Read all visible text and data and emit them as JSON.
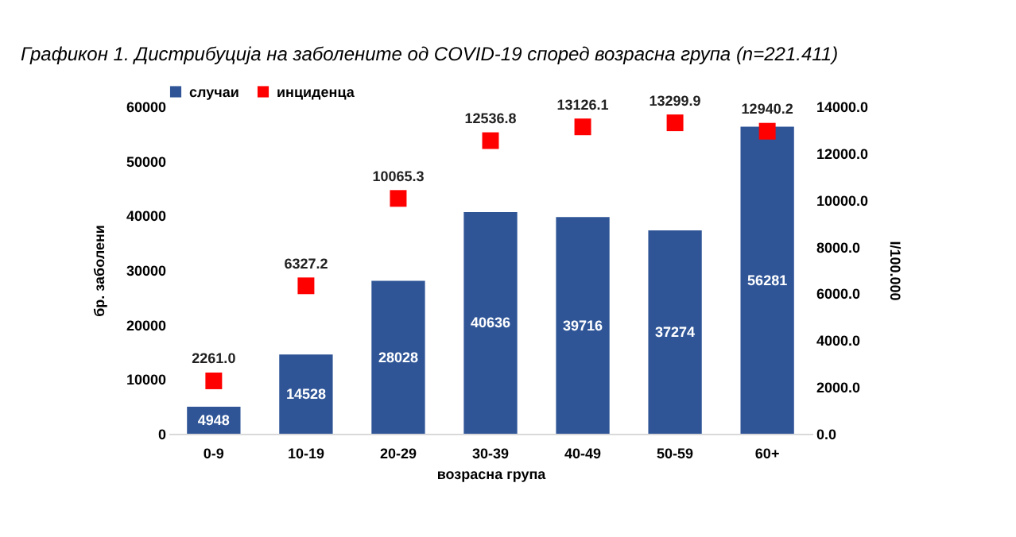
{
  "chart_data": {
    "type": "bar",
    "title": "Графикон 1. Дистрибуција на заболените од COVID-19 според возрасна група (n=221.411)",
    "xlabel": "возрасна група",
    "ylabel": "бр. заболени",
    "y2label": "I/100.000",
    "categories": [
      "0-9",
      "10-19",
      "20-29",
      "30-39",
      "40-49",
      "50-59",
      "60+"
    ],
    "series": [
      {
        "name": "случаи",
        "color": "#2f5597",
        "values": [
          4948,
          14528,
          28028,
          40636,
          39716,
          37274,
          56281
        ]
      },
      {
        "name": "инциденца",
        "type": "scatter",
        "axis": "y2",
        "color": "#ff0000",
        "values": [
          2261.0,
          6327.2,
          10065.3,
          12536.8,
          13126.1,
          13299.9,
          12940.2
        ],
        "value_labels": [
          "2261.0",
          "6327.2",
          "10065.3",
          "12536.8",
          "13126.1",
          "13299.9",
          "12940.2"
        ]
      }
    ],
    "ylim": [
      0,
      60000
    ],
    "yticks": [
      0,
      10000,
      20000,
      30000,
      40000,
      50000,
      60000
    ],
    "y2lim": [
      0,
      14000
    ],
    "y2ticks": [
      {
        "value": 0,
        "label": "0.0"
      },
      {
        "value": 2000,
        "label": "2000.0"
      },
      {
        "value": 4000,
        "label": "4000.0"
      },
      {
        "value": 6000,
        "label": "6000.0"
      },
      {
        "value": 8000,
        "label": "8000.0"
      },
      {
        "value": 10000,
        "label": "10000.0"
      },
      {
        "value": 12000,
        "label": "12000.0"
      },
      {
        "value": 14000,
        "label": "14000.0"
      }
    ],
    "data_labels": true,
    "legend": "top",
    "grid": false,
    "marker": "square"
  }
}
